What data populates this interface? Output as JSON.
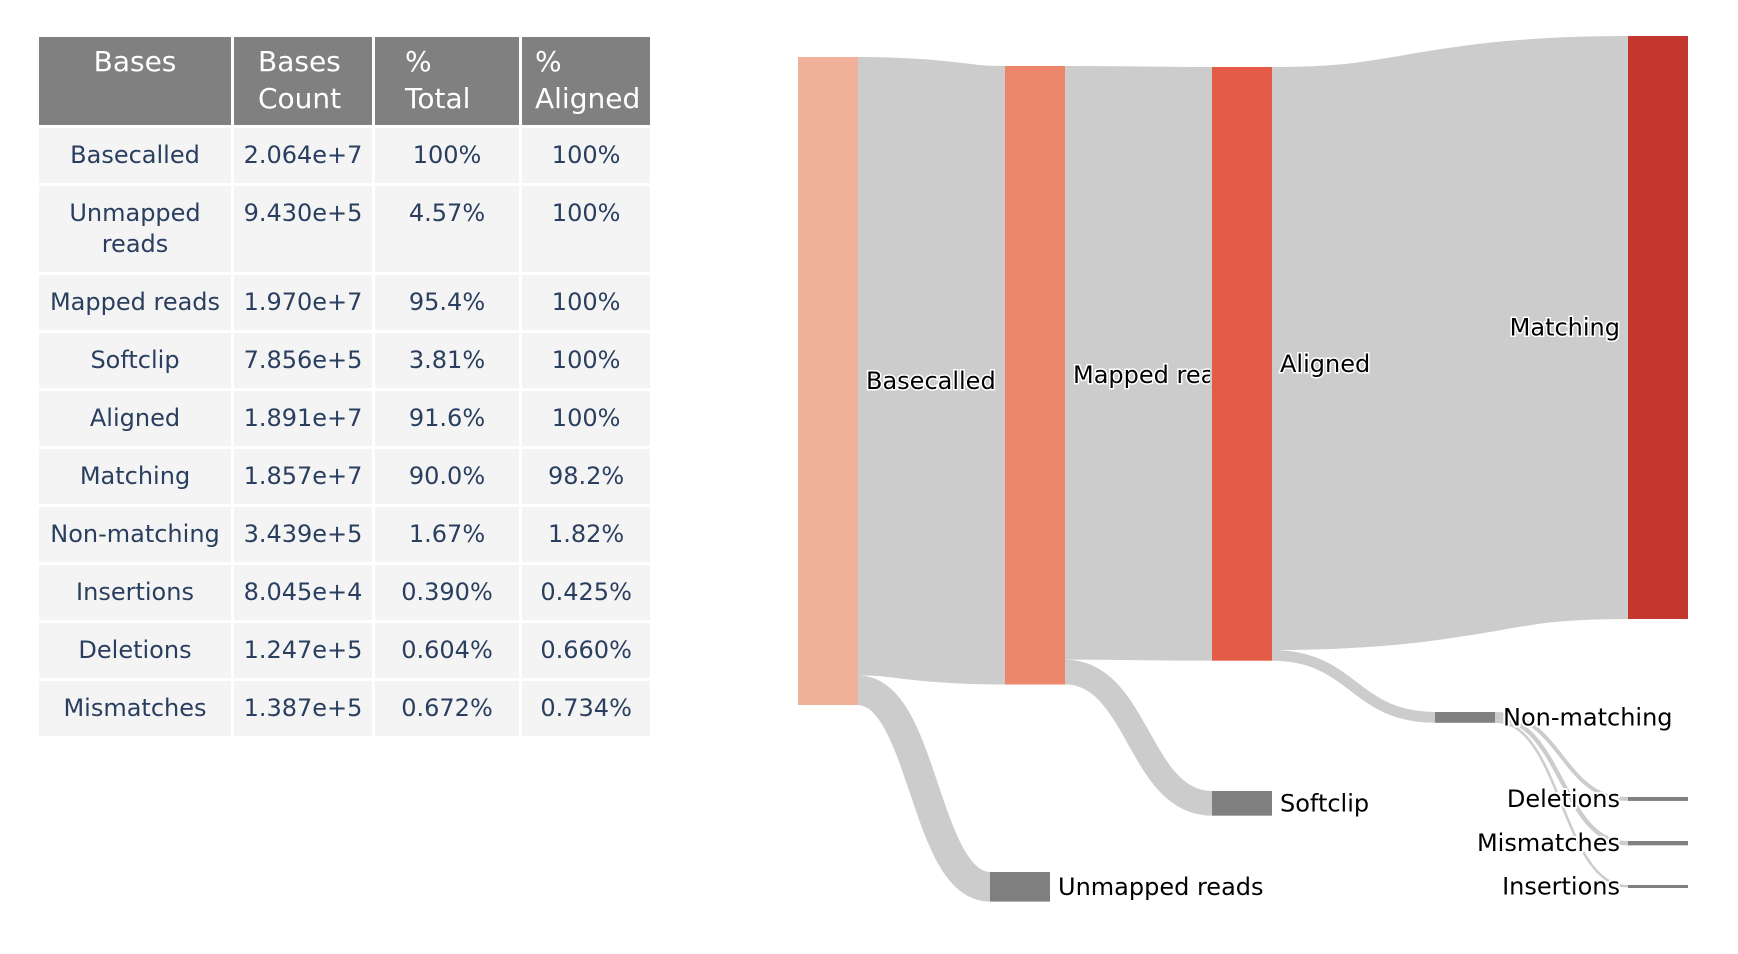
{
  "table": {
    "headers": [
      "Bases",
      "Bases Count",
      "% Total",
      "% Aligned"
    ],
    "rows": [
      {
        "name": "Basecalled",
        "count": "2.064e+7",
        "total": "100%",
        "aligned": "100%"
      },
      {
        "name": "Unmapped reads",
        "count": "9.430e+5",
        "total": "4.57%",
        "aligned": "100%"
      },
      {
        "name": "Mapped reads",
        "count": "1.970e+7",
        "total": "95.4%",
        "aligned": "100%"
      },
      {
        "name": "Softclip",
        "count": "7.856e+5",
        "total": "3.81%",
        "aligned": "100%"
      },
      {
        "name": "Aligned",
        "count": "1.891e+7",
        "total": "91.6%",
        "aligned": "100%"
      },
      {
        "name": "Matching",
        "count": "1.857e+7",
        "total": "90.0%",
        "aligned": "98.2%"
      },
      {
        "name": "Non-matching",
        "count": "3.439e+5",
        "total": "1.67%",
        "aligned": "1.82%"
      },
      {
        "name": "Insertions",
        "count": "8.045e+4",
        "total": "0.390%",
        "aligned": "0.425%"
      },
      {
        "name": "Deletions",
        "count": "1.247e+5",
        "total": "0.604%",
        "aligned": "0.660%"
      },
      {
        "name": "Mismatches",
        "count": "1.387e+5",
        "total": "0.672%",
        "aligned": "0.734%"
      }
    ]
  },
  "chart_data": {
    "type": "sankey",
    "nodes": [
      {
        "name": "Basecalled",
        "label": "Basecalled",
        "value": 20640000,
        "color": "#f1b09a"
      },
      {
        "name": "Mapped reads",
        "label": "Mapped rea",
        "value": 19700000,
        "color": "#ec876c"
      },
      {
        "name": "Unmapped reads",
        "label": "Unmapped reads",
        "value": 943000,
        "color": "#808080"
      },
      {
        "name": "Aligned",
        "label": "Aligned",
        "value": 18910000,
        "color": "#e45c47"
      },
      {
        "name": "Softclip",
        "label": "Softclip",
        "value": 785600,
        "color": "#808080"
      },
      {
        "name": "Matching",
        "label": "Matching",
        "value": 18570000,
        "color": "#c4372f"
      },
      {
        "name": "Non-matching",
        "label": "Non-matching",
        "value": 343900,
        "color": "#808080"
      },
      {
        "name": "Deletions",
        "label": "Deletions",
        "value": 124700,
        "color": "#808080"
      },
      {
        "name": "Mismatches",
        "label": "Mismatches",
        "value": 138700,
        "color": "#808080"
      },
      {
        "name": "Insertions",
        "label": "Insertions",
        "value": 80450,
        "color": "#808080"
      }
    ],
    "links": [
      {
        "source": "Basecalled",
        "target": "Mapped reads",
        "value": 19700000
      },
      {
        "source": "Basecalled",
        "target": "Unmapped reads",
        "value": 943000
      },
      {
        "source": "Mapped reads",
        "target": "Aligned",
        "value": 18910000
      },
      {
        "source": "Mapped reads",
        "target": "Softclip",
        "value": 785600
      },
      {
        "source": "Aligned",
        "target": "Matching",
        "value": 18570000
      },
      {
        "source": "Aligned",
        "target": "Non-matching",
        "value": 343900
      },
      {
        "source": "Non-matching",
        "target": "Deletions",
        "value": 124700
      },
      {
        "source": "Non-matching",
        "target": "Mismatches",
        "value": 138700
      },
      {
        "source": "Non-matching",
        "target": "Insertions",
        "value": 80450
      }
    ],
    "link_color": "#cccccc"
  }
}
